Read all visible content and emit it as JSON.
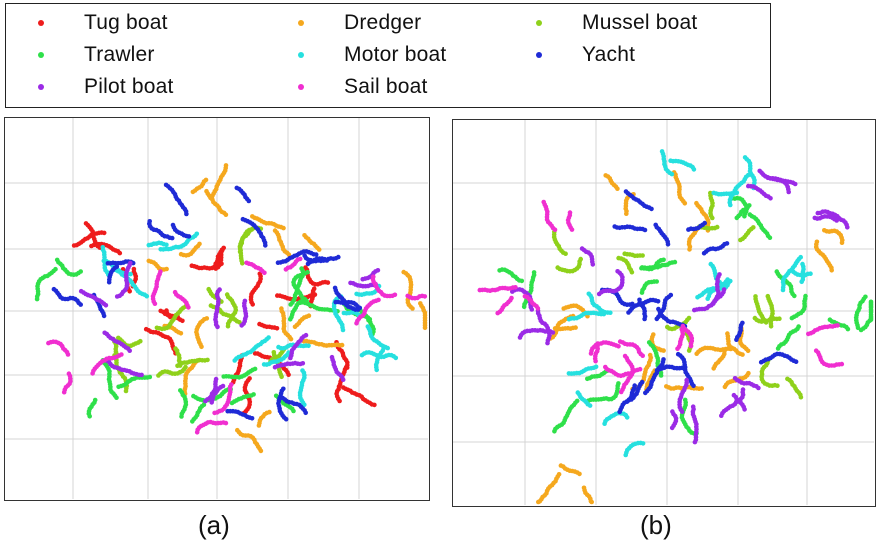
{
  "legend": [
    {
      "label": "Tug boat",
      "color": "#ee1c1c"
    },
    {
      "label": "Dredger",
      "color": "#f5a81e"
    },
    {
      "label": "Mussel boat",
      "color": "#8fd11b"
    },
    {
      "label": "Trawler",
      "color": "#2fe04a"
    },
    {
      "label": "Motor boat",
      "color": "#26e0df"
    },
    {
      "label": "Yacht",
      "color": "#1f2bd6"
    },
    {
      "label": "Pilot boat",
      "color": "#9b2be6"
    },
    {
      "label": "Sail boat",
      "color": "#f02fd0"
    }
  ],
  "captions": {
    "a": "(a)",
    "b": "(b)"
  },
  "chart_data": [
    {
      "type": "scatter",
      "title": "(a)",
      "xlabel": "",
      "ylabel": "",
      "grid": true,
      "legend_position": "top",
      "series": [
        {
          "name": "Tug boat",
          "color": "#ee1c1c",
          "clusters": [
            [
              0.14,
              0.22
            ],
            [
              0.42,
              0.32
            ],
            [
              0.6,
              0.48
            ],
            [
              0.75,
              0.38
            ],
            [
              0.52,
              0.68
            ],
            [
              0.3,
              0.55
            ],
            [
              0.25,
              0.42
            ],
            [
              0.8,
              0.7
            ]
          ]
        },
        {
          "name": "Dredger",
          "color": "#f5a81e",
          "clusters": [
            [
              0.45,
              0.12
            ],
            [
              0.55,
              0.88
            ],
            [
              0.35,
              0.35
            ],
            [
              0.65,
              0.25
            ],
            [
              0.42,
              0.62
            ],
            [
              0.68,
              0.55
            ],
            [
              0.99,
              0.5
            ]
          ]
        },
        {
          "name": "Mussel boat",
          "color": "#8fd11b",
          "clusters": [
            [
              0.3,
              0.58
            ],
            [
              0.36,
              0.7
            ],
            [
              0.55,
              0.3
            ],
            [
              0.48,
              0.45
            ],
            [
              0.2,
              0.62
            ],
            [
              0.62,
              0.6
            ]
          ]
        },
        {
          "name": "Trawler",
          "color": "#2fe04a",
          "clusters": [
            [
              0.08,
              0.4
            ],
            [
              0.2,
              0.75
            ],
            [
              0.82,
              0.52
            ],
            [
              0.6,
              0.72
            ],
            [
              0.4,
              0.78
            ],
            [
              0.7,
              0.42
            ]
          ]
        },
        {
          "name": "Motor boat",
          "color": "#26e0df",
          "clusters": [
            [
              0.18,
              0.38
            ],
            [
              0.58,
              0.58
            ],
            [
              0.88,
              0.63
            ],
            [
              0.65,
              0.66
            ],
            [
              0.32,
              0.3
            ],
            [
              0.78,
              0.48
            ]
          ]
        },
        {
          "name": "Yacht",
          "color": "#1f2bd6",
          "clusters": [
            [
              0.38,
              0.2
            ],
            [
              0.22,
              0.34
            ],
            [
              0.55,
              0.18
            ],
            [
              0.8,
              0.45
            ],
            [
              0.6,
              0.8
            ],
            [
              0.7,
              0.3
            ],
            [
              0.15,
              0.45
            ]
          ]
        },
        {
          "name": "Pilot boat",
          "color": "#9b2be6",
          "clusters": [
            [
              0.16,
              0.6
            ],
            [
              0.45,
              0.82
            ],
            [
              0.9,
              0.4
            ],
            [
              0.5,
              0.52
            ],
            [
              0.22,
              0.5
            ],
            [
              0.72,
              0.62
            ]
          ]
        },
        {
          "name": "Sail boat",
          "color": "#f02fd0",
          "clusters": [
            [
              0.13,
              0.68
            ],
            [
              0.5,
              0.88
            ],
            [
              0.92,
              0.45
            ],
            [
              0.35,
              0.5
            ],
            [
              0.62,
              0.38
            ]
          ]
        }
      ]
    },
    {
      "type": "scatter",
      "title": "(b)",
      "xlabel": "",
      "ylabel": "",
      "grid": true,
      "legend_position": "top",
      "series": [
        {
          "name": "Tug boat",
          "color": "#ee1c1c",
          "clusters": []
        },
        {
          "name": "Dredger",
          "color": "#f5a81e",
          "clusters": [
            [
              0.4,
              0.18
            ],
            [
              0.55,
              0.25
            ],
            [
              0.62,
              0.68
            ],
            [
              0.25,
              0.5
            ],
            [
              0.48,
              0.65
            ],
            [
              0.9,
              0.3
            ],
            [
              0.26,
              0.95
            ],
            [
              0.7,
              0.58
            ]
          ]
        },
        {
          "name": "Mussel boat",
          "color": "#8fd11b",
          "clusters": [
            [
              0.28,
              0.38
            ],
            [
              0.55,
              0.52
            ],
            [
              0.72,
              0.55
            ],
            [
              0.78,
              0.72
            ],
            [
              0.38,
              0.35
            ],
            [
              0.65,
              0.3
            ]
          ]
        },
        {
          "name": "Trawler",
          "color": "#2fe04a",
          "clusters": [
            [
              0.12,
              0.4
            ],
            [
              0.28,
              0.72
            ],
            [
              0.7,
              0.2
            ],
            [
              0.85,
              0.5
            ],
            [
              0.95,
              0.55
            ],
            [
              0.52,
              0.7
            ],
            [
              0.45,
              0.42
            ]
          ]
        },
        {
          "name": "Motor boat",
          "color": "#26e0df",
          "clusters": [
            [
              0.5,
              0.05
            ],
            [
              0.35,
              0.55
            ],
            [
              0.62,
              0.42
            ],
            [
              0.8,
              0.38
            ],
            [
              0.42,
              0.82
            ],
            [
              0.28,
              0.68
            ],
            [
              0.7,
              0.2
            ]
          ]
        },
        {
          "name": "Yacht",
          "color": "#1f2bd6",
          "clusters": [
            [
              0.58,
              0.3
            ],
            [
              0.48,
              0.48
            ],
            [
              0.4,
              0.5
            ],
            [
              0.52,
              0.62
            ],
            [
              0.38,
              0.75
            ],
            [
              0.7,
              0.6
            ],
            [
              0.45,
              0.25
            ]
          ]
        },
        {
          "name": "Pilot boat",
          "color": "#9b2be6",
          "clusters": [
            [
              0.75,
              0.15
            ],
            [
              0.18,
              0.52
            ],
            [
              0.6,
              0.45
            ],
            [
              0.85,
              0.22
            ],
            [
              0.3,
              0.42
            ],
            [
              0.68,
              0.72
            ],
            [
              0.55,
              0.8
            ]
          ]
        },
        {
          "name": "Sail boat",
          "color": "#f02fd0",
          "clusters": [
            [
              0.1,
              0.45
            ],
            [
              0.38,
              0.55
            ],
            [
              0.55,
              0.58
            ],
            [
              0.85,
              0.6
            ],
            [
              0.35,
              0.62
            ],
            [
              0.22,
              0.25
            ]
          ]
        }
      ]
    }
  ]
}
